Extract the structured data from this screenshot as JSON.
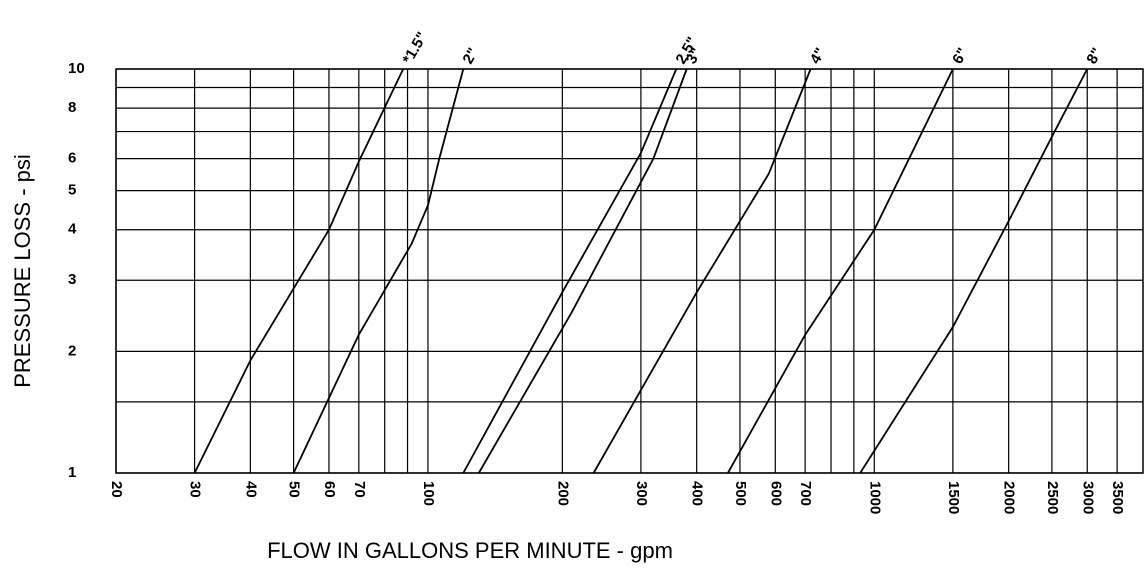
{
  "chart_data": {
    "type": "line",
    "ylabel": "PRESSURE LOSS - psi",
    "xlabel": "FLOW IN GALLONS PER MINUTE - gpm",
    "xscale": "log",
    "yscale": "log",
    "grid": true,
    "color": "#000000",
    "xlim": [
      20,
      4000
    ],
    "ylim": [
      1,
      10
    ],
    "xticks": [
      20,
      30,
      40,
      50,
      60,
      70,
      100,
      200,
      300,
      400,
      500,
      600,
      700,
      1000,
      1500,
      2000,
      2500,
      3000,
      3500
    ],
    "xminor": [
      80,
      90,
      800,
      900
    ],
    "yticks": [
      1,
      2,
      3,
      4,
      5,
      6,
      8,
      10
    ],
    "yminor": [
      1.5,
      7,
      9
    ],
    "series": [
      {
        "name": "*1.5\"",
        "x": [
          30,
          40,
          60,
          70,
          88
        ],
        "values": [
          1,
          1.9,
          4,
          5.9,
          10
        ]
      },
      {
        "name": "2\"",
        "x": [
          50,
          70,
          92,
          100,
          106,
          120
        ],
        "values": [
          1,
          2.2,
          3.7,
          4.6,
          6,
          10
        ]
      },
      {
        "name": "2.5\"",
        "x": [
          120,
          200,
          300,
          360
        ],
        "values": [
          1,
          2.8,
          6.2,
          10
        ]
      },
      {
        "name": "3\"",
        "x": [
          130,
          210,
          320,
          380
        ],
        "values": [
          1,
          2.5,
          6,
          10
        ]
      },
      {
        "name": "4\"",
        "x": [
          235,
          400,
          580,
          720
        ],
        "values": [
          1,
          2.8,
          5.5,
          10
        ]
      },
      {
        "name": "6\"",
        "x": [
          470,
          700,
          1000,
          1500
        ],
        "values": [
          1,
          2.2,
          4,
          10
        ]
      },
      {
        "name": "8\"",
        "x": [
          930,
          1500,
          2000,
          2500,
          3000
        ],
        "values": [
          1,
          2.3,
          4.2,
          6.8,
          10
        ]
      }
    ]
  }
}
